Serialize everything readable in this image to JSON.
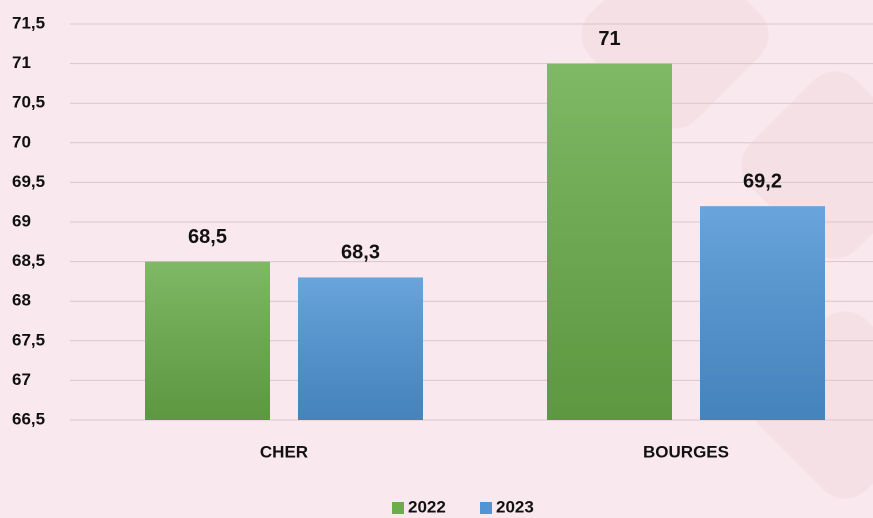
{
  "chart_data": {
    "type": "bar",
    "categories": [
      "CHER",
      "BOURGES"
    ],
    "series": [
      {
        "name": "2022",
        "color": "#6aad4a",
        "values": [
          68.5,
          71
        ],
        "value_labels": [
          "68,5",
          "71"
        ]
      },
      {
        "name": "2023",
        "color": "#4f95d6",
        "values": [
          68.3,
          69.2
        ],
        "value_labels": [
          "68,3",
          "69,2"
        ]
      }
    ],
    "ylim": [
      66.5,
      71.5
    ],
    "yticks": [
      {
        "value": 66.5,
        "label": "66,5"
      },
      67,
      {
        "value": 67.5,
        "label": "67,5"
      },
      68,
      {
        "value": 68.5,
        "label": "68,5"
      },
      69,
      {
        "value": 69.5,
        "label": "69,5"
      },
      70,
      {
        "value": 70.5,
        "label": "70,5"
      },
      71,
      {
        "value": 71.5,
        "label": "71,5"
      }
    ],
    "grid": true,
    "legend": "bottom",
    "value_label_color": "#d6156e"
  }
}
